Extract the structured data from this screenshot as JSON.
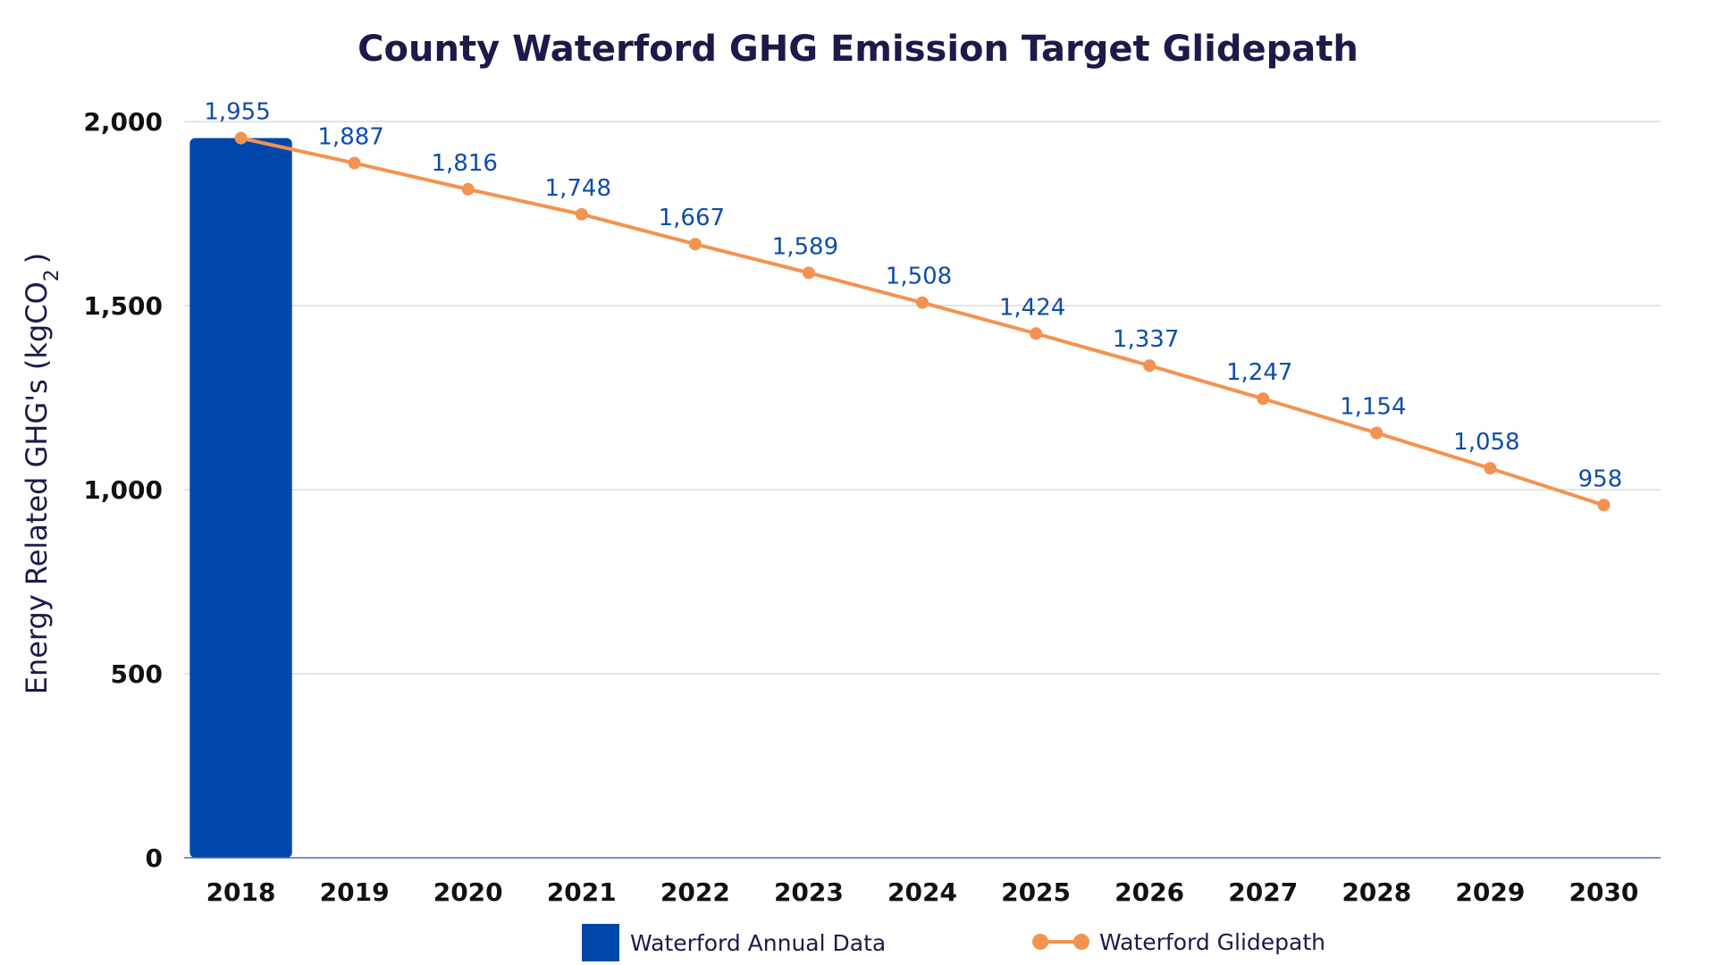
{
  "colors": {
    "bar": "#0047AB",
    "line": "#F4924F",
    "data_label": "#0F4DA8",
    "title": "#1B1A4A",
    "grid": "#D4D4D4"
  },
  "chart_data": {
    "type": "bar",
    "title": "County Waterford GHG Emission Target Glidepath",
    "ylabel": "Energy Related GHG's (kgCO2)",
    "ylabel_parts": {
      "main": "Energy Related GHG's (kgCO",
      "subscript": "2",
      "closing": ")"
    },
    "xlabel": "",
    "ylim": [
      0,
      2000
    ],
    "yticks": [
      0,
      500,
      1000,
      1500,
      2000
    ],
    "ytick_labels": [
      "0",
      "500",
      "1,000",
      "1,500",
      "2,000"
    ],
    "grid": true,
    "legend_position": "bottom",
    "categories": [
      "2018",
      "2019",
      "2020",
      "2021",
      "2022",
      "2023",
      "2024",
      "2025",
      "2026",
      "2027",
      "2028",
      "2029",
      "2030"
    ],
    "series": [
      {
        "name": "Waterford Annual Data",
        "type": "bar",
        "values": [
          1955,
          null,
          null,
          null,
          null,
          null,
          null,
          null,
          null,
          null,
          null,
          null,
          null
        ]
      },
      {
        "name": "Waterford Glidepath",
        "type": "line",
        "values": [
          1955,
          1887,
          1816,
          1748,
          1667,
          1589,
          1508,
          1424,
          1337,
          1247,
          1154,
          1058,
          958
        ],
        "data_labels": [
          "1,955",
          "1,887",
          "1,816",
          "1,748",
          "1,667",
          "1,589",
          "1,508",
          "1,424",
          "1,337",
          "1,247",
          "1,154",
          "1,058",
          "958"
        ]
      }
    ]
  }
}
